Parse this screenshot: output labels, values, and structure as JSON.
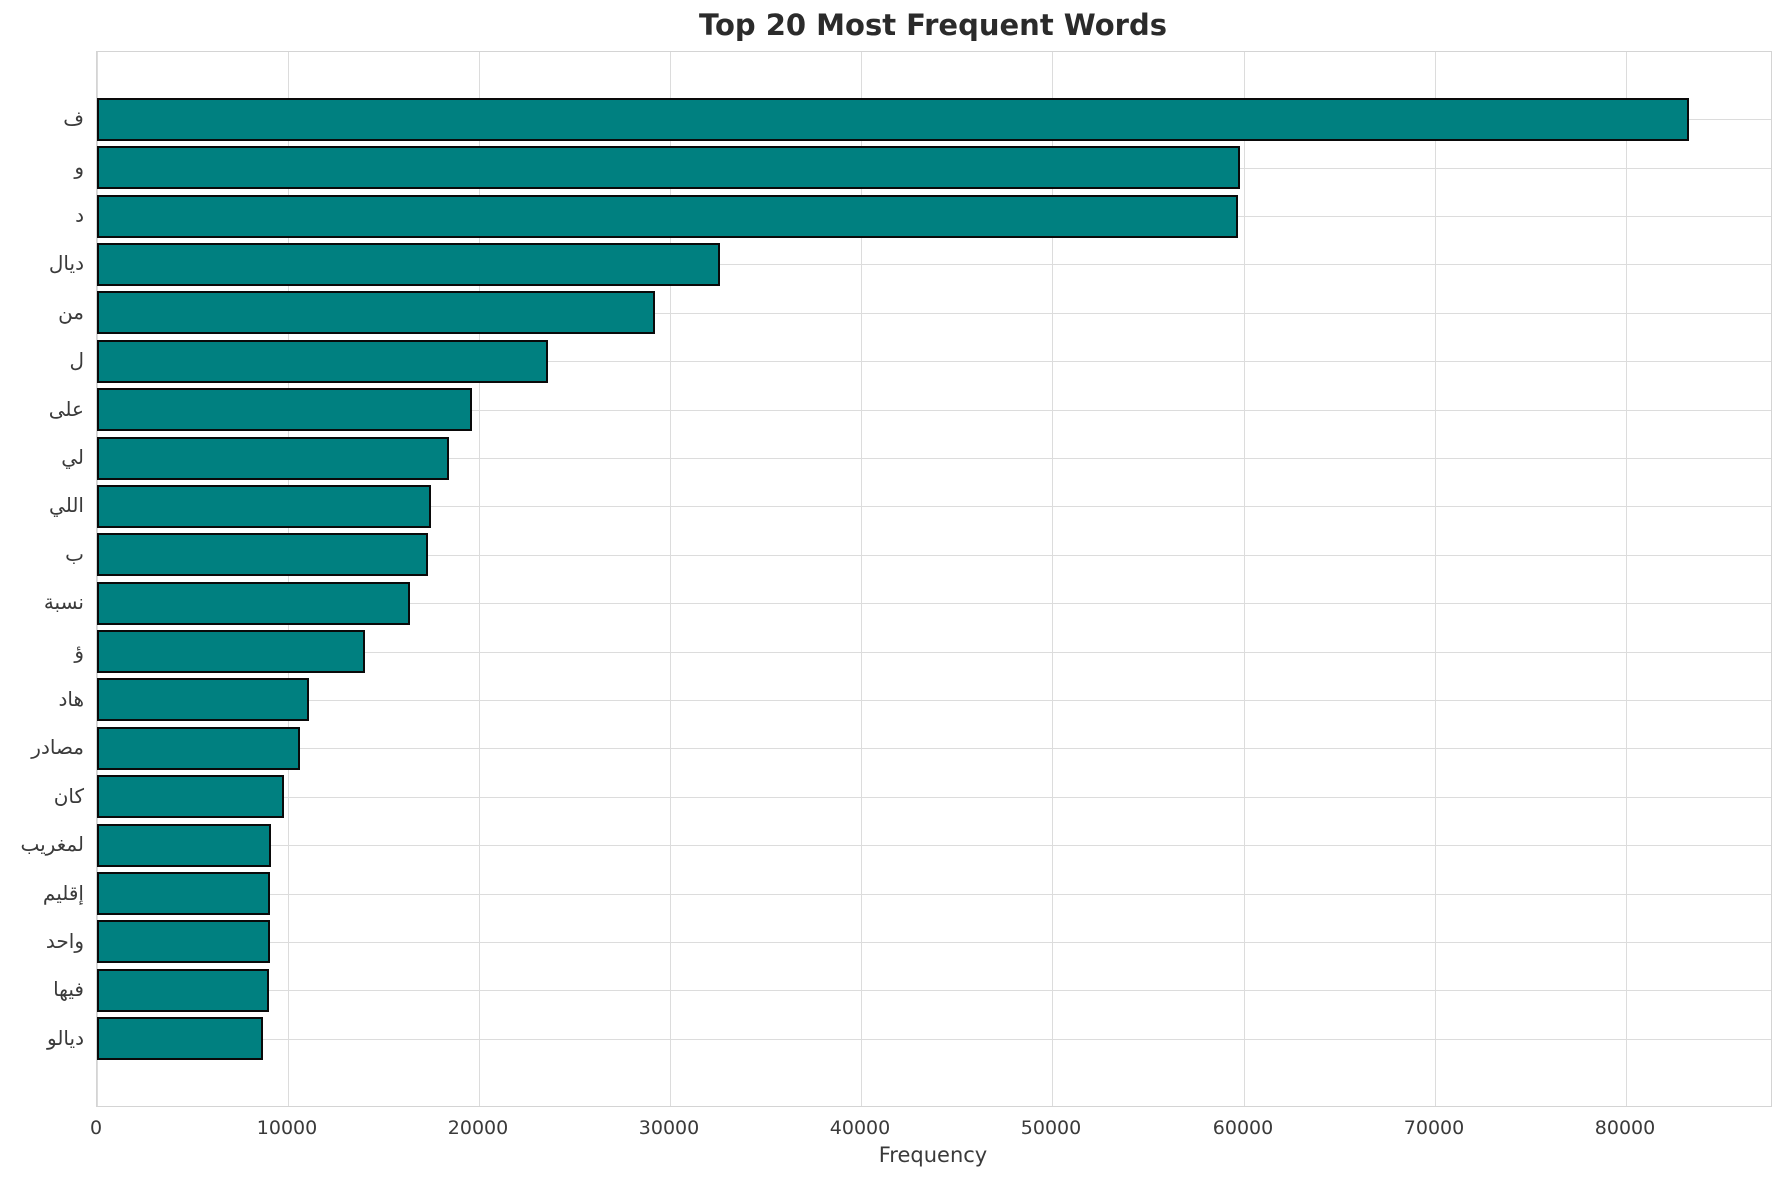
{
  "chart_data": {
    "type": "bar",
    "orientation": "horizontal",
    "title": "Top 20 Most Frequent Words",
    "xlabel": "Frequency",
    "ylabel": "",
    "categories": [
      "ف",
      "و",
      "د",
      "ديال",
      "من",
      "ل",
      "على",
      "لي",
      "اللي",
      "ب",
      "نسبة",
      "ؤ",
      "هاد",
      "مصادر",
      "كان",
      "لمغريب",
      "إقليم",
      "واحد",
      "فيها",
      "ديالو"
    ],
    "values": [
      83300,
      59800,
      59700,
      32600,
      29200,
      23600,
      19600,
      18400,
      17500,
      17300,
      16400,
      14000,
      11100,
      10600,
      9800,
      9100,
      9060,
      9040,
      9000,
      8700
    ],
    "xticks": [
      0,
      10000,
      20000,
      30000,
      40000,
      50000,
      60000,
      70000,
      80000
    ],
    "xlim": [
      0,
      87600
    ],
    "grid": true,
    "legend": false,
    "bar_color": "#008080",
    "bar_edge_color": "#0a0a0a",
    "grid_color": "#dcdcdc",
    "tick_text_color": "#3a3a3a",
    "title_color": "#2b2b2b"
  }
}
